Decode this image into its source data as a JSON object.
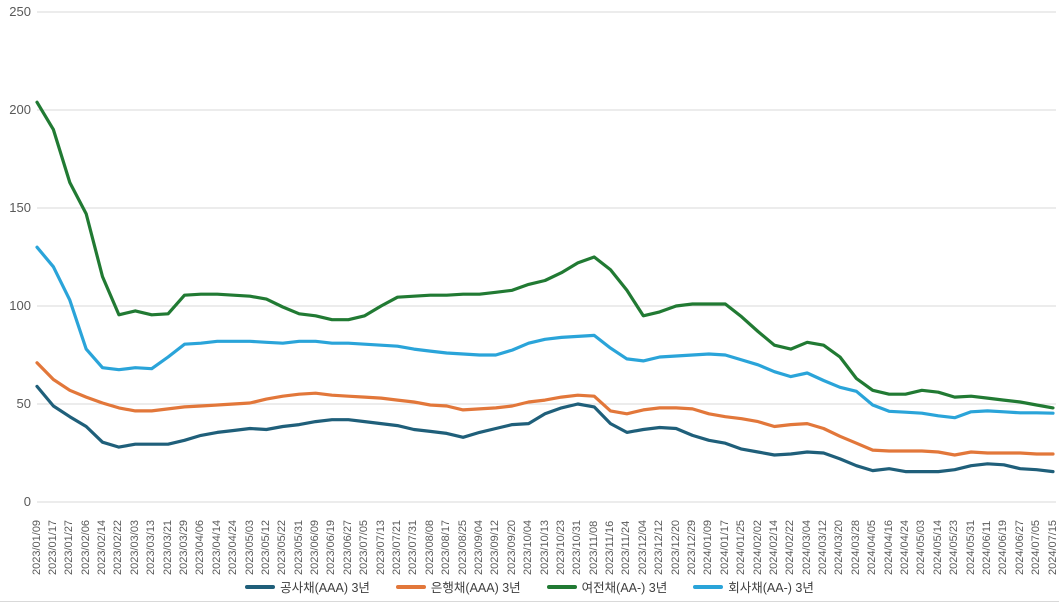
{
  "chart_data": {
    "type": "line",
    "title": "",
    "xlabel": "",
    "ylabel": "",
    "grid": true,
    "legend_position": "bottom",
    "background_color": "#ffffff",
    "gridline_color": "#d9d9d9",
    "axis_label_color": "#595959",
    "legend_text_color": "#3f3f3f",
    "y_axis": {
      "min": 0,
      "max": 250,
      "step": 50,
      "tick_labels": [
        "0",
        "50",
        "100",
        "150",
        "200",
        "250"
      ]
    },
    "x_tick_labels": [
      "2023/01/09",
      "2023/01/17",
      "2023/01/27",
      "2023/02/06",
      "2023/02/14",
      "2023/02/22",
      "2023/03/03",
      "2023/03/13",
      "2023/03/21",
      "2023/03/29",
      "2023/04/06",
      "2023/04/14",
      "2023/04/24",
      "2023/05/03",
      "2023/05/12",
      "2023/05/22",
      "2023/05/31",
      "2023/06/09",
      "2023/06/19",
      "2023/06/27",
      "2023/07/05",
      "2023/07/13",
      "2023/07/21",
      "2023/07/31",
      "2023/08/08",
      "2023/08/17",
      "2023/08/25",
      "2023/09/04",
      "2023/09/12",
      "2023/09/20",
      "2023/10/04",
      "2023/10/13",
      "2023/10/23",
      "2023/10/31",
      "2023/11/08",
      "2023/11/16",
      "2023/11/24",
      "2023/12/04",
      "2023/12/12",
      "2023/12/20",
      "2023/12/29",
      "2024/01/09",
      "2024/01/17",
      "2024/01/25",
      "2024/02/02",
      "2024/02/14",
      "2024/02/22",
      "2024/03/04",
      "2024/03/12",
      "2024/03/20",
      "2024/03/28",
      "2024/04/05",
      "2024/04/16",
      "2024/04/24",
      "2024/05/03",
      "2024/05/14",
      "2024/05/23",
      "2024/05/31",
      "2024/06/11",
      "2024/06/19",
      "2024/06/27",
      "2024/07/05",
      "2024/07/15"
    ],
    "series": [
      {
        "name": "공사채(AAA) 3년",
        "color": "#1f5f7a",
        "values": [
          59,
          49,
          43.5,
          38.5,
          30.5,
          28,
          29.5,
          29.5,
          29.5,
          31.5,
          34,
          35.5,
          36.5,
          37.5,
          37,
          38.5,
          39.5,
          41,
          42,
          42,
          41,
          40,
          39,
          37,
          36,
          35,
          33,
          35.5,
          37.5,
          39.5,
          40,
          45,
          48,
          50,
          48.5,
          40,
          35.5,
          37,
          38,
          37.5,
          34,
          31.5,
          30,
          27,
          25.5,
          24,
          24.5,
          25.5,
          25,
          22,
          18.5,
          16,
          17,
          15.5,
          15.5,
          15.5,
          16.5,
          18.5,
          19.5,
          19,
          17,
          16.5,
          15.5
        ]
      },
      {
        "name": "은행채(AAA) 3년",
        "color": "#e2773a",
        "values": [
          71,
          62.5,
          57,
          53.5,
          50.5,
          48,
          46.5,
          46.5,
          47.5,
          48.5,
          49,
          49.5,
          50,
          50.5,
          52.5,
          54,
          55,
          55.5,
          54.5,
          54,
          53.5,
          53,
          52,
          51,
          49.5,
          49,
          47,
          47.5,
          48,
          49,
          51,
          52,
          53.5,
          54.5,
          54,
          46.5,
          45,
          47,
          48,
          48,
          47.5,
          45,
          43.5,
          42.5,
          41,
          38.5,
          39.5,
          40,
          37.5,
          33.5,
          30,
          26.5,
          26,
          26,
          26,
          25.5,
          24,
          25.5,
          25,
          25,
          25,
          24.5,
          24.5
        ]
      },
      {
        "name": "여전채(AA-) 3년",
        "color": "#217a33",
        "values": [
          204,
          190,
          163,
          147,
          115,
          95.5,
          97.5,
          95.5,
          96,
          105.5,
          106,
          106,
          105.5,
          105,
          103.5,
          99.5,
          96,
          95,
          93,
          93,
          95,
          100,
          104.5,
          105,
          105.5,
          105.5,
          106,
          106,
          107,
          108,
          111,
          113,
          117,
          122,
          125,
          118.5,
          108,
          95,
          97,
          100,
          101,
          101,
          101,
          94.5,
          87,
          80,
          78,
          81.5,
          80,
          74,
          63,
          57,
          55,
          55,
          57,
          56,
          53.5,
          54,
          53,
          52,
          51,
          49.5,
          48
        ]
      },
      {
        "name": "회사채(AA-) 3년",
        "color": "#2aa4d9",
        "values": [
          130,
          120,
          103,
          78,
          68.5,
          67.5,
          68.5,
          68,
          74,
          80.5,
          81,
          82,
          82,
          82,
          81.5,
          81,
          82,
          82,
          81,
          81,
          80.5,
          80,
          79.5,
          78,
          77,
          76,
          75.5,
          75,
          75,
          77.5,
          81,
          83,
          84,
          84.5,
          85,
          78.5,
          73,
          72,
          74,
          74.5,
          75,
          75.5,
          75,
          72.5,
          70,
          66.5,
          64,
          65.8,
          62,
          58.5,
          56.5,
          49.5,
          46.3,
          45.8,
          45.3,
          44,
          43,
          46,
          46.5,
          46,
          45.5,
          45.5,
          45.3
        ]
      }
    ]
  }
}
